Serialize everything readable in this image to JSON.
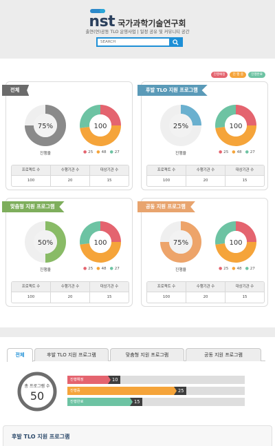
{
  "header": {
    "logo": "nst",
    "org_name": "국가과학기술연구회",
    "tagline": "출연(연)공동 TLO 운영사업 | 일정 공유 및 커뮤니티 공간",
    "search_placeholder": "SEARCH",
    "search_icon": "search-icon"
  },
  "legend": {
    "items": [
      {
        "label": "진행예정",
        "color": "#e4646f"
      },
      {
        "label": "진 행 중",
        "color": "#f5a43a"
      },
      {
        "label": "진행완료",
        "color": "#6dc3a3"
      }
    ]
  },
  "cards": [
    {
      "title": "전체",
      "ribbon_color": "#6b6b6b",
      "progress_color": "#8a8a8a",
      "progress_value": 75,
      "progress_text": "75%",
      "progress_label": "진행율",
      "center_value": "100",
      "breakdown": [
        {
          "label": "25",
          "value": 25,
          "color": "#e4646f"
        },
        {
          "label": "48",
          "value": 48,
          "color": "#f5a43a"
        },
        {
          "label": "27",
          "value": 27,
          "color": "#6dc3a3"
        }
      ],
      "stats_headers": [
        "프로젝트 수",
        "수행기관 수",
        "대상기관 수"
      ],
      "stats_values": [
        "100",
        "20",
        "15"
      ]
    },
    {
      "title": "후발 TLO 지원 프로그램",
      "ribbon_color": "#5a9ab8",
      "progress_color": "#6ab0cf",
      "progress_value": 25,
      "progress_text": "25%",
      "progress_label": "진행율",
      "center_value": "100",
      "breakdown": [
        {
          "label": "25",
          "value": 25,
          "color": "#e4646f"
        },
        {
          "label": "48",
          "value": 48,
          "color": "#f5a43a"
        },
        {
          "label": "27",
          "value": 27,
          "color": "#6dc3a3"
        }
      ],
      "stats_headers": [
        "프로젝트 수",
        "수행기관 수",
        "대상기관 수"
      ],
      "stats_values": [
        "100",
        "20",
        "15"
      ]
    },
    {
      "title": "맞춤형 지원 프로그램",
      "ribbon_color": "#7eae5c",
      "progress_color": "#89bb66",
      "progress_value": 50,
      "progress_text": "50%",
      "progress_label": "진행율",
      "center_value": "100",
      "breakdown": [
        {
          "label": "25",
          "value": 25,
          "color": "#e4646f"
        },
        {
          "label": "48",
          "value": 48,
          "color": "#f5a43a"
        },
        {
          "label": "27",
          "value": 27,
          "color": "#6dc3a3"
        }
      ],
      "stats_headers": [
        "프로젝트 수",
        "수행기관 수",
        "대상기관 수"
      ],
      "stats_values": [
        "100",
        "20",
        "15"
      ]
    },
    {
      "title": "공동 지원 프로그램",
      "ribbon_color": "#e8a46e",
      "progress_color": "#eda46a",
      "progress_value": 75,
      "progress_text": "75%",
      "progress_label": "진행율",
      "center_value": "100",
      "breakdown": [
        {
          "label": "25",
          "value": 25,
          "color": "#e4646f"
        },
        {
          "label": "48",
          "value": 48,
          "color": "#f5a43a"
        },
        {
          "label": "27",
          "value": 27,
          "color": "#6dc3a3"
        }
      ],
      "stats_headers": [
        "프로젝트 수",
        "수행기관 수",
        "대상기관 수"
      ],
      "stats_values": [
        "100",
        "20",
        "15"
      ]
    }
  ],
  "tabs": [
    {
      "label": "전체",
      "active": true
    },
    {
      "label": "후발 TLO 지원 프로그램",
      "active": false
    },
    {
      "label": "맞춤형 지원 프로그램",
      "active": false
    },
    {
      "label": "공동 지원 프로그램",
      "active": false
    }
  ],
  "summary": {
    "total_label": "총 프로그램 수",
    "total_value": "50",
    "max": 40,
    "bars": [
      {
        "label": "진행예정",
        "value": 10,
        "value_text": "10",
        "color": "#e4646f"
      },
      {
        "label": "진행중",
        "value": 25,
        "value_text": "25",
        "color": "#f5a43a"
      },
      {
        "label": "진행완료",
        "value": 15,
        "value_text": "15",
        "color": "#6dc3a3"
      }
    ]
  },
  "section": {
    "title": "후발 TLO 지원 프로그램"
  }
}
